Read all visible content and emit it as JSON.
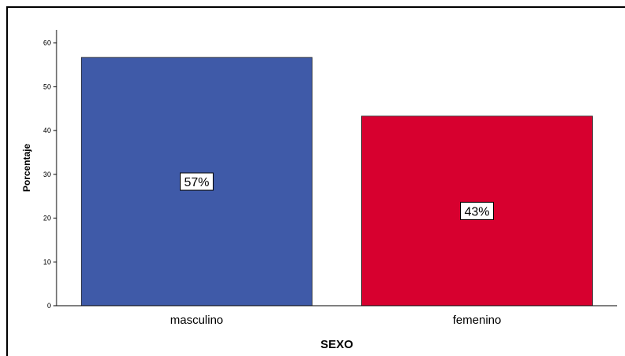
{
  "chart_data": {
    "type": "bar",
    "categories": [
      "masculino",
      "femenino"
    ],
    "values": [
      56.7,
      43.3
    ],
    "data_labels": [
      "57%",
      "43%"
    ],
    "colors": [
      "#3f5aa8",
      "#d7002f"
    ],
    "xlabel": "SEXO",
    "ylabel": "Porcentaje",
    "ylim": [
      0,
      63
    ],
    "yticks": [
      0,
      10,
      20,
      30,
      40,
      50,
      60
    ],
    "grid": false,
    "legend": "none"
  }
}
